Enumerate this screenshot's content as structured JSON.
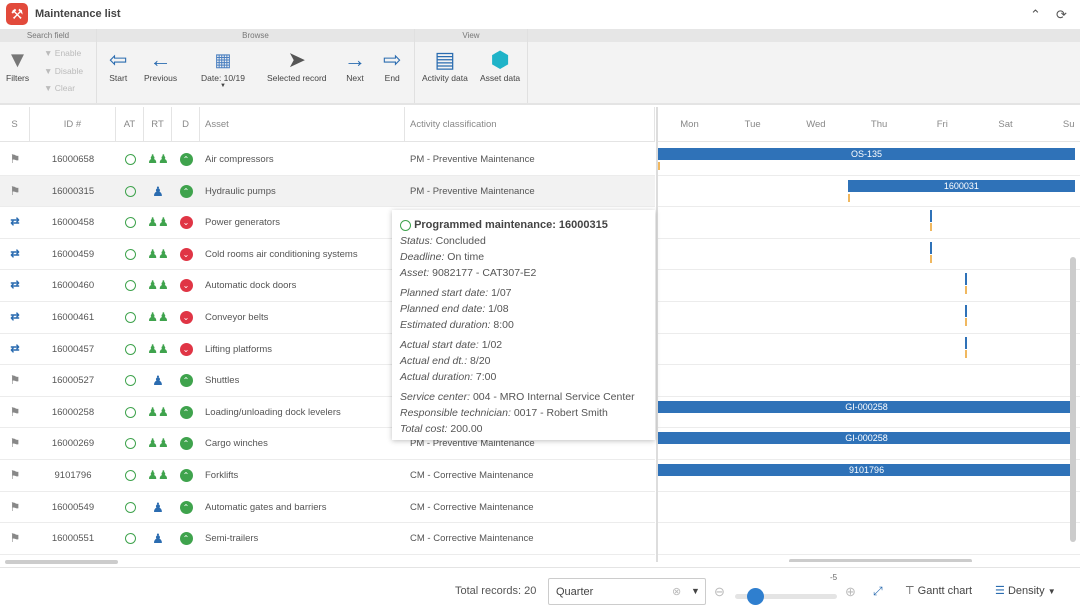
{
  "app": {
    "title": "Maintenance list",
    "icons": [
      "collapse-icon",
      "refresh-icon"
    ]
  },
  "ribbon": {
    "groups": {
      "search": "Search field",
      "browse": "Browse",
      "view": "View"
    },
    "filters": "Filters",
    "enable": "Enable",
    "disable": "Disable",
    "clear": "Clear",
    "start": "Start",
    "previous": "Previous",
    "date": "Date: 10/19",
    "selected": "Selected record",
    "next": "Next",
    "end": "End",
    "activity": "Activity data",
    "asset": "Asset data"
  },
  "columns": [
    "S",
    "ID #",
    "AT",
    "RT",
    "D",
    "Asset",
    "Activity classification"
  ],
  "rows": [
    {
      "status": "flag",
      "id": "16000658",
      "rt": "group",
      "d": "up",
      "asset": "Air compressors",
      "cls": "PM - Preventive Maintenance"
    },
    {
      "status": "flag",
      "id": "16000315",
      "rt": "person",
      "d": "up",
      "asset": "Hydraulic pumps",
      "cls": "PM - Preventive Maintenance"
    },
    {
      "status": "reschedule",
      "id": "16000458",
      "rt": "group",
      "d": "down",
      "asset": "Power generators",
      "cls": ""
    },
    {
      "status": "reschedule",
      "id": "16000459",
      "rt": "group",
      "d": "down",
      "asset": "Cold rooms air conditioning systems",
      "cls": ""
    },
    {
      "status": "reschedule",
      "id": "16000460",
      "rt": "group",
      "d": "down",
      "asset": "Automatic dock doors",
      "cls": ""
    },
    {
      "status": "reschedule",
      "id": "16000461",
      "rt": "group",
      "d": "down",
      "asset": "Conveyor belts",
      "cls": ""
    },
    {
      "status": "reschedule",
      "id": "16000457",
      "rt": "group",
      "d": "down",
      "asset": "Lifting platforms",
      "cls": ""
    },
    {
      "status": "flag",
      "id": "16000527",
      "rt": "person",
      "d": "up",
      "asset": "Shuttles",
      "cls": ""
    },
    {
      "status": "flag",
      "id": "16000258",
      "rt": "group",
      "d": "up",
      "asset": "Loading/unloading dock levelers",
      "cls": ""
    },
    {
      "status": "flag",
      "id": "16000269",
      "rt": "group",
      "d": "up",
      "asset": "Cargo winches",
      "cls": "PM - Preventive Maintenance"
    },
    {
      "status": "flag",
      "id": "9101796",
      "rt": "group",
      "d": "up",
      "asset": "Forklifts",
      "cls": "CM - Corrective Maintenance"
    },
    {
      "status": "flag",
      "id": "16000549",
      "rt": "person",
      "d": "up",
      "asset": "Automatic gates and barriers",
      "cls": "CM - Corrective Maintenance"
    },
    {
      "status": "flag",
      "id": "16000551",
      "rt": "person",
      "d": "up",
      "asset": "Semi-trailers",
      "cls": "CM - Corrective Maintenance"
    }
  ],
  "gantt": {
    "days": [
      "Mon",
      "Tue",
      "Wed",
      "Thu",
      "Fri",
      "Sat",
      "Su"
    ],
    "bars": [
      {
        "row": 0,
        "start": 0,
        "end": 6.6,
        "label": "OS-135"
      },
      {
        "row": 1,
        "start": 3,
        "end": 6.6,
        "label": "1600031"
      },
      {
        "row": 8,
        "start": 0,
        "end": 6.6,
        "label": "GI-000258"
      },
      {
        "row": 9,
        "start": 0,
        "end": 6.6,
        "label": "GI-000258"
      },
      {
        "row": 10,
        "start": 0,
        "end": 6.6,
        "label": "9101796"
      }
    ],
    "marks": [
      {
        "row": 2,
        "at": 4.3
      },
      {
        "row": 3,
        "at": 4.3
      },
      {
        "row": 4,
        "at": 4.85
      },
      {
        "row": 5,
        "at": 4.85
      },
      {
        "row": 6,
        "at": 4.85
      }
    ],
    "bar_color": "#2f72b8"
  },
  "tooltip": {
    "title": "Programmed maintenance: 16000315",
    "lines": [
      [
        {
          "k": "Status:",
          "v": " Concluded"
        },
        {
          "k": "Deadline:",
          "v": " On time"
        },
        {
          "k": "Asset:",
          "v": " 9082177 - CAT307-E2"
        }
      ],
      [
        {
          "k": "Planned start date:",
          "v": " 1/07"
        },
        {
          "k": "Planned end date:",
          "v": " 1/08"
        },
        {
          "k": "Estimated duration:",
          "v": " 8:00"
        }
      ],
      [
        {
          "k": "Actual start date:",
          "v": " 1/02"
        },
        {
          "k": "Actual end dt.:",
          "v": " 8/20"
        },
        {
          "k": "Actual duration:",
          "v": " 7:00"
        }
      ],
      [
        {
          "k": "Service center:",
          "v": " 004 - MRO Internal Service Center"
        },
        {
          "k": "Responsible technician:",
          "v": " 0017 - Robert Smith"
        },
        {
          "k": "Total cost:",
          "v": " 200.00"
        }
      ]
    ]
  },
  "footer": {
    "total": "Total records: 20",
    "period": "Quarter",
    "zoom_value": "-5",
    "zoom_level": 0.2,
    "gantt": "Gantt chart",
    "density": "Density"
  }
}
